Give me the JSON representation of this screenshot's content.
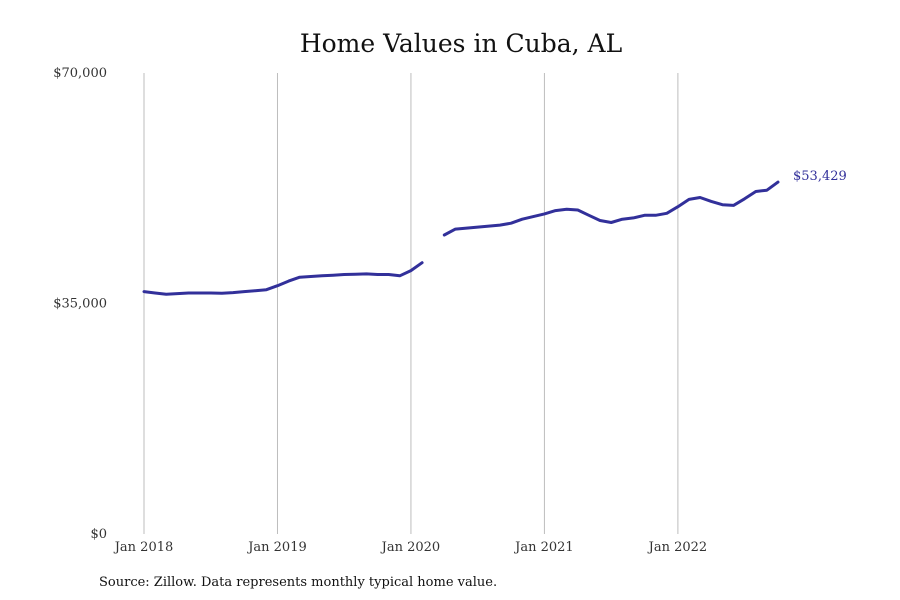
{
  "chart_data": {
    "type": "line",
    "title": "Home Values in Cuba, AL",
    "source": "Source: Zillow. Data represents monthly typical home value.",
    "xlabel": "",
    "ylabel": "",
    "ylim": [
      0,
      70000
    ],
    "yticks": [
      {
        "value": 0,
        "label": "$0"
      },
      {
        "value": 35000,
        "label": "$35,000"
      },
      {
        "value": 70000,
        "label": "$70,000"
      }
    ],
    "xticks": [
      {
        "value": "2018-01",
        "label": "Jan 2018"
      },
      {
        "value": "2019-01",
        "label": "Jan 2019"
      },
      {
        "value": "2020-01",
        "label": "Jan 2020"
      },
      {
        "value": "2021-01",
        "label": "Jan 2021"
      },
      {
        "value": "2022-01",
        "label": "Jan 2022"
      }
    ],
    "x_range": [
      "2018-01",
      "2022-10"
    ],
    "grid": {
      "vertical": true,
      "horizontal": false
    },
    "line_color": "#32309a",
    "end_label": "$53,429",
    "series": [
      {
        "segments": [
          {
            "x": [
              "2018-01",
              "2018-02",
              "2018-03",
              "2018-04",
              "2018-05",
              "2018-06",
              "2018-07",
              "2018-08",
              "2018-09",
              "2018-10",
              "2018-11",
              "2018-12",
              "2019-01",
              "2019-02",
              "2019-03",
              "2019-04",
              "2019-05",
              "2019-06",
              "2019-07",
              "2019-08",
              "2019-09",
              "2019-10",
              "2019-11",
              "2019-12",
              "2020-01",
              "2020-02"
            ],
            "y": [
              36800,
              36600,
              36400,
              36500,
              36600,
              36600,
              36600,
              36550,
              36650,
              36800,
              36950,
              37100,
              37700,
              38400,
              39000,
              39100,
              39200,
              39300,
              39400,
              39450,
              39500,
              39400,
              39400,
              39200,
              40000,
              41200
            ]
          },
          {
            "x": [
              "2020-04",
              "2020-05",
              "2020-06",
              "2020-07",
              "2020-08",
              "2020-09",
              "2020-10",
              "2020-11",
              "2020-12",
              "2021-01",
              "2021-02",
              "2021-03",
              "2021-04",
              "2021-05",
              "2021-06",
              "2021-07",
              "2021-08",
              "2021-09",
              "2021-10",
              "2021-11",
              "2021-12",
              "2022-01",
              "2022-02",
              "2022-03",
              "2022-04",
              "2022-05",
              "2022-06",
              "2022-07",
              "2022-08",
              "2022-09",
              "2022-10"
            ],
            "y": [
              45400,
              46300,
              46450,
              46600,
              46750,
              46900,
              47200,
              47800,
              48200,
              48600,
              49100,
              49300,
              49200,
              48400,
              47600,
              47300,
              47800,
              48000,
              48400,
              48400,
              48700,
              49700,
              50800,
              51100,
              50500,
              50000,
              49900,
              50900,
              52000,
              52200,
              53429
            ]
          }
        ]
      }
    ]
  }
}
